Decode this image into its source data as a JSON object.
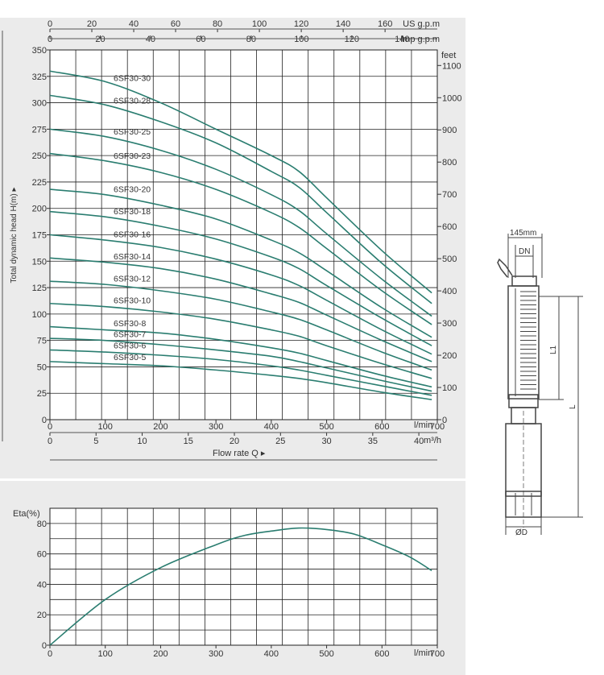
{
  "colors": {
    "panel": "#ebebeb",
    "plot_bg": "#ffffff",
    "grid": "#222222",
    "curve": "#2a7d70",
    "axis_text": "#333333",
    "drawing": "#444444"
  },
  "chart_data": [
    {
      "type": "line",
      "ylabel": "Total dynamic head H(m) ▸",
      "xlabel": "Flow  rate Q ▸",
      "xlim": [
        0,
        700
      ],
      "ylim": [
        0,
        350
      ],
      "x_ticks": [
        0,
        100,
        200,
        300,
        400,
        500,
        600,
        700
      ],
      "y_ticks": [
        0,
        25,
        50,
        75,
        100,
        125,
        150,
        175,
        200,
        225,
        250,
        275,
        300,
        325,
        350
      ],
      "x_unit": "l/min",
      "secondary_axes": {
        "us_gpm": {
          "label": "US g.p.m",
          "ticks": [
            "0",
            "20",
            "40",
            "60",
            "80",
            "100",
            "120",
            "140",
            "160"
          ]
        },
        "imp_gpm": {
          "label": "Imp g.p.m",
          "ticks": [
            "0",
            "20",
            "40",
            "60",
            "80",
            "100",
            "120",
            "140"
          ]
        },
        "feet": {
          "label": "feet",
          "ticks": [
            "0",
            "100",
            "200",
            "300",
            "400",
            "500",
            "600",
            "700",
            "800",
            "900",
            "1000",
            "1100"
          ]
        },
        "m3h": {
          "label": "m³/h",
          "ticks": [
            "0",
            "5",
            "10",
            "15",
            "20",
            "25",
            "30",
            "35",
            "40"
          ]
        }
      },
      "series": [
        {
          "name": "6SF30-30",
          "x": [
            0,
            100,
            200,
            300,
            400,
            450,
            500,
            600,
            690
          ],
          "y": [
            330,
            320,
            300,
            275,
            250,
            235,
            210,
            160,
            120
          ]
        },
        {
          "name": "6SF30-28",
          "x": [
            0,
            100,
            200,
            300,
            400,
            450,
            500,
            600,
            690
          ],
          "y": [
            307,
            298,
            282,
            262,
            235,
            220,
            196,
            148,
            110
          ]
        },
        {
          "name": "6SF30-25",
          "x": [
            0,
            100,
            200,
            300,
            400,
            450,
            500,
            600,
            690
          ],
          "y": [
            275,
            268,
            255,
            237,
            213,
            198,
            176,
            133,
            98
          ]
        },
        {
          "name": "6SF30-23",
          "x": [
            0,
            100,
            200,
            300,
            400,
            450,
            500,
            600,
            690
          ],
          "y": [
            252,
            245,
            234,
            218,
            196,
            182,
            162,
            122,
            90
          ]
        },
        {
          "name": "6SF30-20",
          "x": [
            0,
            100,
            200,
            300,
            400,
            450,
            500,
            600,
            690
          ],
          "y": [
            218,
            213,
            203,
            190,
            170,
            158,
            141,
            106,
            78
          ]
        },
        {
          "name": "6SF30-18",
          "x": [
            0,
            100,
            200,
            300,
            400,
            450,
            500,
            600,
            690
          ],
          "y": [
            197,
            192,
            183,
            171,
            154,
            143,
            127,
            96,
            70
          ]
        },
        {
          "name": "6SF30-16",
          "x": [
            0,
            100,
            200,
            300,
            400,
            450,
            500,
            600,
            690
          ],
          "y": [
            175,
            170,
            163,
            152,
            137,
            127,
            113,
            85,
            62
          ]
        },
        {
          "name": "6SF30-14",
          "x": [
            0,
            100,
            200,
            300,
            400,
            450,
            500,
            600,
            690
          ],
          "y": [
            153,
            149,
            143,
            133,
            119,
            111,
            99,
            75,
            55
          ]
        },
        {
          "name": "6SF30-12",
          "x": [
            0,
            100,
            200,
            300,
            400,
            450,
            500,
            600,
            690
          ],
          "y": [
            131,
            128,
            122,
            114,
            102,
            95,
            85,
            64,
            47
          ]
        },
        {
          "name": "6SF30-10",
          "x": [
            0,
            100,
            200,
            300,
            400,
            450,
            500,
            600,
            690
          ],
          "y": [
            110,
            107,
            102,
            95,
            85,
            79,
            70,
            53,
            39
          ]
        },
        {
          "name": "6SF30-8",
          "x": [
            0,
            100,
            200,
            300,
            400,
            450,
            500,
            600,
            690
          ],
          "y": [
            88,
            85,
            82,
            76,
            68,
            63,
            56,
            42,
            31
          ]
        },
        {
          "name": "6SF30-7",
          "x": [
            0,
            100,
            200,
            300,
            400,
            450,
            500,
            600,
            690
          ],
          "y": [
            77,
            75,
            71,
            66,
            60,
            55,
            49,
            37,
            27
          ]
        },
        {
          "name": "6SF30-6",
          "x": [
            0,
            100,
            200,
            300,
            400,
            450,
            500,
            600,
            690
          ],
          "y": [
            66,
            64,
            61,
            57,
            51,
            47,
            42,
            32,
            23
          ]
        },
        {
          "name": "6SF30-5",
          "x": [
            0,
            100,
            200,
            300,
            400,
            450,
            500,
            600,
            690
          ],
          "y": [
            55,
            53,
            51,
            47,
            42,
            39,
            35,
            26,
            19
          ]
        }
      ]
    },
    {
      "type": "line",
      "ylabel": "Eta(%)",
      "x_unit": "l/min",
      "xlim": [
        0,
        700
      ],
      "ylim": [
        0,
        90
      ],
      "x_ticks": [
        0,
        100,
        200,
        300,
        400,
        500,
        600,
        700
      ],
      "y_ticks": [
        0,
        20,
        40,
        60,
        80
      ],
      "series": [
        {
          "x": [
            0,
            100,
            200,
            300,
            350,
            400,
            450,
            500,
            550,
            600,
            650,
            690
          ],
          "y": [
            0,
            30,
            51,
            66,
            72,
            75,
            77,
            76,
            73,
            66,
            58,
            49
          ]
        }
      ]
    }
  ],
  "drawing": {
    "dim_width": "145mm",
    "dim_dn": "DN",
    "dim_l1": "L1",
    "dim_l": "L",
    "dim_d": "ØD"
  }
}
